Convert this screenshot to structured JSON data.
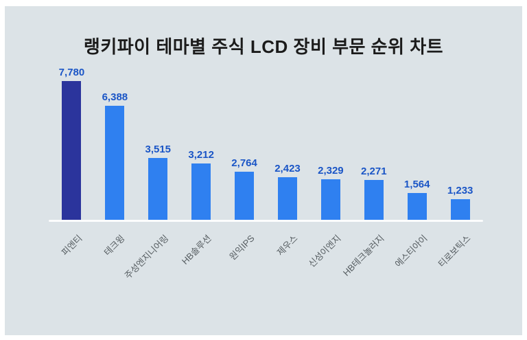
{
  "page": {
    "outer_background": "#ffffff",
    "panel_background": "#dce3e7",
    "title_color": "#1b1b1b",
    "axis_line_color": "#fcfdfd"
  },
  "chart_data": {
    "type": "bar",
    "title": "랭키파이 테마별 주식 LCD 장비 부문 순위 차트",
    "categories": [
      "피엔티",
      "테크윙",
      "주성엔지니어링",
      "HB솔루션",
      "원익IPS",
      "제우스",
      "신성이엔지",
      "HB테크놀러지",
      "에스티아이",
      "티로보틱스"
    ],
    "values": [
      7780,
      6388,
      3515,
      3212,
      2764,
      2423,
      2329,
      2271,
      1564,
      1233
    ],
    "value_labels": [
      "7,780",
      "6,388",
      "3,515",
      "3,212",
      "2,764",
      "2,423",
      "2,329",
      "2,271",
      "1,564",
      "1,233"
    ],
    "xlabel": "",
    "ylabel": "",
    "ylim": [
      0,
      7780
    ],
    "grid": false,
    "legend": false,
    "category_label_rotation_deg": 45,
    "colors": {
      "bar_highlight_first": "#2b349c",
      "bar_default": "#2f80f0",
      "value_label": "#1a55c6",
      "category_label": "#565d61"
    }
  }
}
